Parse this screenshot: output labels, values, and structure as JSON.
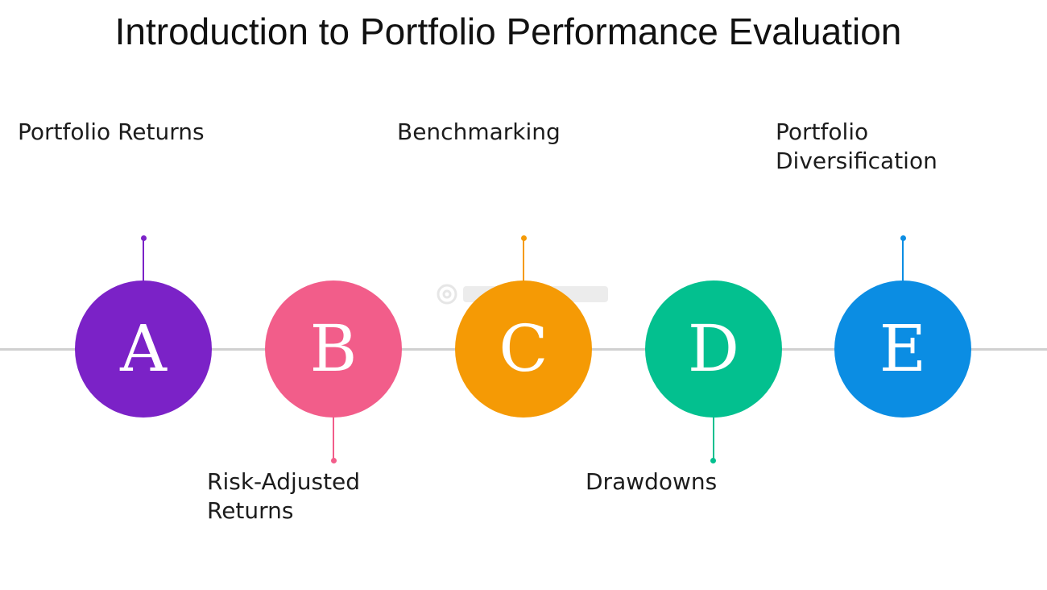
{
  "title": "Introduction to Portfolio Performance Evaluation",
  "colors": {
    "timeline": "#d0d0d0",
    "a": "#7b22c7",
    "b": "#f25d8a",
    "c": "#f59a05",
    "d": "#03c08f",
    "e": "#0b8de3"
  },
  "steps": [
    {
      "letter": "A",
      "label": "Portfolio Returns",
      "position": "above"
    },
    {
      "letter": "B",
      "label": "Risk-Adjusted Returns",
      "position": "below"
    },
    {
      "letter": "C",
      "label": "Benchmarking",
      "position": "above"
    },
    {
      "letter": "D",
      "label": "Drawdowns",
      "position": "below"
    },
    {
      "letter": "E",
      "label": "Portfolio Diversification",
      "position": "above"
    }
  ],
  "watermark": {
    "icon": "gear-icon"
  }
}
